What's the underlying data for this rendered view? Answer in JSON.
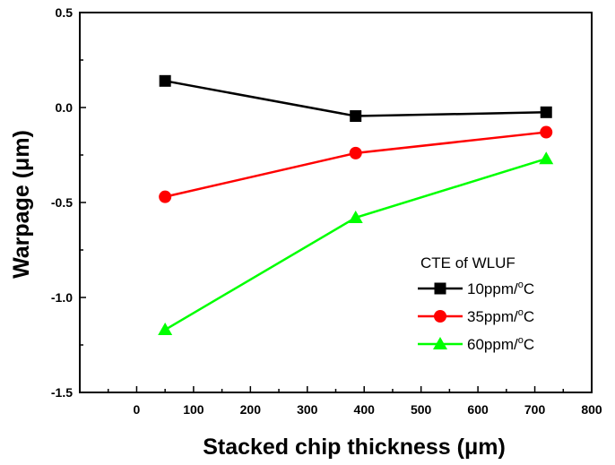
{
  "chart_data": {
    "type": "line",
    "title": "",
    "xlabel": "Stacked chip thickness (μm)",
    "ylabel": "Warpage (μm)",
    "xlim": [
      -100,
      800
    ],
    "ylim": [
      -1.5,
      0.5
    ],
    "x_ticks": [
      "0",
      "100",
      "200",
      "300",
      "400",
      "500",
      "600",
      "700",
      "800"
    ],
    "y_ticks": [
      "0.5",
      "0.0",
      "-0.5",
      "-1.0",
      "-1.5"
    ],
    "grid": false,
    "legend": {
      "title": "CTE of WLUF",
      "placement": "lower-right"
    },
    "series": [
      {
        "name": "10ppm/°C",
        "name_main": "10ppm/",
        "name_sup": "o",
        "name_unit": "C",
        "color": "#000000",
        "marker": "square",
        "x": [
          50,
          385,
          720
        ],
        "values": [
          0.14,
          -0.045,
          -0.025
        ]
      },
      {
        "name": "35ppm/°C",
        "name_main": "35ppm/",
        "name_sup": "o",
        "name_unit": "C",
        "color": "#ff0000",
        "marker": "circle",
        "x": [
          50,
          385,
          720
        ],
        "values": [
          -0.47,
          -0.24,
          -0.13
        ]
      },
      {
        "name": "60ppm/°C",
        "name_main": "60ppm/",
        "name_sup": "o",
        "name_unit": "C",
        "color": "#00ff00",
        "marker": "triangle",
        "x": [
          50,
          385,
          720
        ],
        "values": [
          -1.17,
          -0.58,
          -0.27
        ]
      }
    ]
  }
}
